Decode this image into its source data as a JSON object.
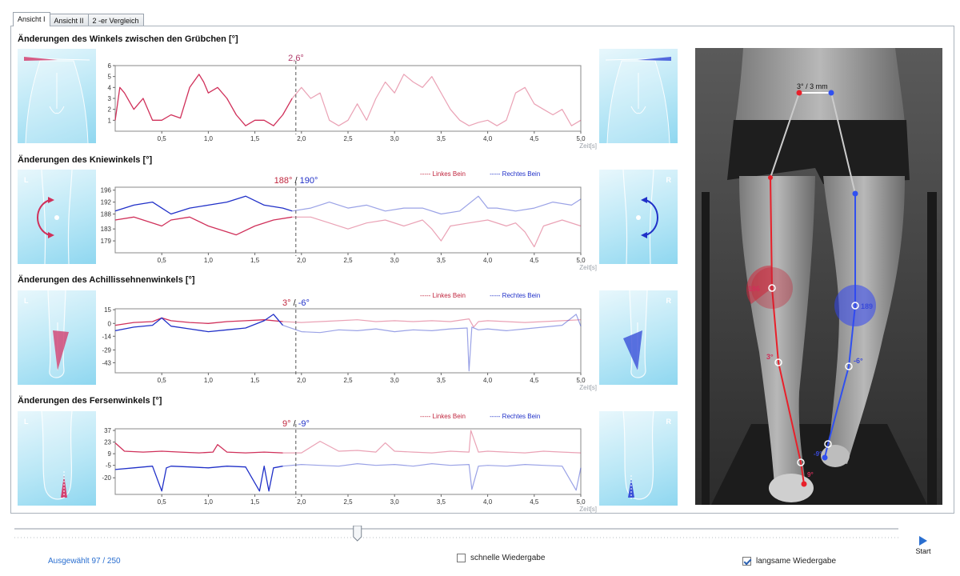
{
  "tabs": [
    {
      "label": "Ansicht I",
      "active": true
    },
    {
      "label": "Ansicht II",
      "active": false
    },
    {
      "label": "2 -er Vergleich",
      "active": false
    }
  ],
  "sections": [
    {
      "title": "Änderungen des Winkels zwischen den Grübchen [°]",
      "readout_left": "2,6°",
      "readout_right": "",
      "legend": null,
      "thumb_left_letter": "",
      "thumb_right_letter": ""
    },
    {
      "title": "Änderungen des Kniewinkels [°]",
      "readout_left": "188°",
      "readout_right": "190°",
      "legend": {
        "left": "----- Linkes Bein",
        "right": "----- Rechtes Bein"
      },
      "thumb_left_letter": "L",
      "thumb_right_letter": "R"
    },
    {
      "title": "Änderungen des Achillissehnenwinkels [°]",
      "readout_left": "3°",
      "readout_right": "-6°",
      "legend": {
        "left": "----- Linkes Bein",
        "right": "----- Rechtes Bein"
      },
      "thumb_left_letter": "L",
      "thumb_right_letter": "R"
    },
    {
      "title": "Änderungen des Fersenwinkels [°]",
      "readout_left": "9°",
      "readout_right": "-9°",
      "legend": {
        "left": "----- Linkes Bein",
        "right": "----- Rechtes Bein"
      },
      "thumb_left_letter": "L",
      "thumb_right_letter": "R"
    }
  ],
  "chart_data": [
    {
      "type": "line",
      "title": "Änderungen des Winkels zwischen den Grübchen [°]",
      "xlabel": "Zeit[s]",
      "xlim": [
        0,
        5.0
      ],
      "ylim": [
        0,
        6
      ],
      "yticks": [
        "6",
        "5",
        "4",
        "3",
        "2",
        "1"
      ],
      "ytick_values": [
        6,
        5,
        4,
        3,
        2,
        1
      ],
      "xticks": [
        "0,5",
        "1,0",
        "1,5",
        "2,0",
        "2,5",
        "3,0",
        "3,5",
        "4,0",
        "4,5",
        "5,0"
      ],
      "xtick_values": [
        0.5,
        1.0,
        1.5,
        2.0,
        2.5,
        3.0,
        3.5,
        4.0,
        4.5,
        5.0
      ],
      "cursor_x": 1.94,
      "series": [
        {
          "color": "#d0305a",
          "x": [
            0,
            0.05,
            0.1,
            0.2,
            0.3,
            0.4,
            0.5,
            0.6,
            0.7,
            0.8,
            0.9,
            0.95,
            1.0,
            1.1,
            1.2,
            1.3,
            1.4,
            1.5,
            1.6,
            1.7,
            1.8,
            1.9,
            2.0,
            2.1,
            2.2,
            2.3,
            2.4,
            2.5,
            2.6,
            2.7,
            2.8,
            2.9,
            3.0,
            3.1,
            3.2,
            3.3,
            3.4,
            3.5,
            3.6,
            3.7,
            3.8,
            3.9,
            4.0,
            4.1,
            4.2,
            4.3,
            4.4,
            4.5,
            4.6,
            4.7,
            4.8,
            4.9,
            5.0
          ],
          "y": [
            1,
            4,
            3.5,
            2,
            3,
            1,
            1,
            1.5,
            1.2,
            4,
            5.2,
            4.5,
            3.5,
            4,
            3,
            1.5,
            0.5,
            1,
            1,
            0.5,
            1.5,
            3,
            4,
            3,
            3.5,
            1,
            0.5,
            1,
            2.5,
            1,
            3,
            4.5,
            3.5,
            5.2,
            4.5,
            4,
            5,
            3.5,
            2,
            1,
            0.5,
            0.8,
            1,
            0.5,
            1,
            3.5,
            4,
            2.5,
            2,
            1.5,
            2,
            0.5,
            1
          ]
        }
      ]
    },
    {
      "type": "line",
      "title": "Änderungen des Kniewinkels [°]",
      "xlabel": "Zeit[s]",
      "xlim": [
        0,
        5.0
      ],
      "ylim": [
        175,
        197
      ],
      "yticks": [
        "196",
        "192",
        "188",
        "183",
        "179"
      ],
      "ytick_values": [
        196,
        192,
        188,
        183,
        179
      ],
      "xticks": [
        "0,5",
        "1,0",
        "1,5",
        "2,0",
        "2,5",
        "3,0",
        "3,5",
        "4,0",
        "4,5",
        "5,0"
      ],
      "xtick_values": [
        0.5,
        1.0,
        1.5,
        2.0,
        2.5,
        3.0,
        3.5,
        4.0,
        4.5,
        5.0
      ],
      "cursor_x": 1.94,
      "series": [
        {
          "name": "Linkes Bein",
          "color": "#d0305a",
          "x": [
            0,
            0.2,
            0.4,
            0.5,
            0.6,
            0.8,
            1.0,
            1.2,
            1.3,
            1.5,
            1.7,
            1.9,
            2.1,
            2.3,
            2.5,
            2.7,
            2.9,
            3.1,
            3.3,
            3.4,
            3.5,
            3.6,
            3.8,
            4.0,
            4.2,
            4.3,
            4.4,
            4.5,
            4.6,
            4.8,
            5.0
          ],
          "y": [
            186,
            187,
            185,
            184,
            186,
            187,
            184,
            182,
            181,
            184,
            186,
            187,
            187,
            185,
            183,
            185,
            186,
            184,
            186,
            183,
            179,
            184,
            185,
            186,
            184,
            185,
            182,
            177,
            184,
            186,
            184
          ]
        },
        {
          "name": "Rechtes Bein",
          "color": "#2030c8",
          "x": [
            0,
            0.2,
            0.4,
            0.5,
            0.6,
            0.8,
            1.0,
            1.2,
            1.4,
            1.6,
            1.8,
            1.9,
            2.1,
            2.3,
            2.5,
            2.7,
            2.9,
            3.1,
            3.3,
            3.5,
            3.7,
            3.9,
            4.0,
            4.1,
            4.3,
            4.5,
            4.7,
            4.9,
            5.0
          ],
          "y": [
            189,
            191,
            192,
            190,
            188,
            190,
            191,
            192,
            194,
            191,
            190,
            189,
            190,
            192,
            190,
            191,
            189,
            190,
            190,
            188,
            189,
            194,
            190,
            190,
            189,
            190,
            192,
            191,
            193
          ]
        }
      ]
    },
    {
      "type": "line",
      "title": "Änderungen des Achillissehnenwinkels [°]",
      "xlabel": "Zeit[s]",
      "xlim": [
        0,
        5.0
      ],
      "ylim": [
        -54,
        16
      ],
      "yticks": [
        "15",
        "0",
        "-14",
        "-29",
        "-43"
      ],
      "ytick_values": [
        15,
        0,
        -14,
        -29,
        -43
      ],
      "xticks": [
        "0,5",
        "1,0",
        "1,5",
        "2,0",
        "2,5",
        "3,0",
        "3,5",
        "4,0",
        "4,5",
        "5,0"
      ],
      "xtick_values": [
        0.5,
        1.0,
        1.5,
        2.0,
        2.5,
        3.0,
        3.5,
        4.0,
        4.5,
        5.0
      ],
      "cursor_x": 1.94,
      "series": [
        {
          "name": "Linkes Bein",
          "color": "#d0305a",
          "x": [
            0,
            0.2,
            0.4,
            0.5,
            0.6,
            0.8,
            1.0,
            1.2,
            1.4,
            1.6,
            1.8,
            2.0,
            2.2,
            2.4,
            2.6,
            2.8,
            3.0,
            3.2,
            3.4,
            3.6,
            3.8,
            3.85,
            3.9,
            4.0,
            4.2,
            4.4,
            4.6,
            4.8,
            5.0
          ],
          "y": [
            -2,
            1,
            2,
            6,
            3,
            1,
            0,
            2,
            3,
            4,
            2,
            1,
            2,
            3,
            4,
            2,
            3,
            2,
            3,
            2,
            5,
            -4,
            2,
            3,
            2,
            1,
            2,
            3,
            4
          ]
        },
        {
          "name": "Rechtes Bein",
          "color": "#2030c8",
          "x": [
            0,
            0.2,
            0.4,
            0.5,
            0.6,
            0.8,
            1.0,
            1.2,
            1.4,
            1.6,
            1.7,
            1.8,
            2.0,
            2.2,
            2.4,
            2.6,
            2.8,
            3.0,
            3.2,
            3.4,
            3.6,
            3.78,
            3.8,
            3.83,
            3.9,
            4.0,
            4.2,
            4.4,
            4.6,
            4.8,
            4.95,
            5.0
          ],
          "y": [
            -8,
            -4,
            -2,
            6,
            -3,
            -6,
            -9,
            -7,
            -5,
            3,
            10,
            -2,
            -9,
            -10,
            -7,
            -8,
            -6,
            -9,
            -7,
            -8,
            -6,
            -5,
            -52,
            -4,
            -7,
            -6,
            -8,
            -6,
            -4,
            -2,
            10,
            -3
          ]
        }
      ]
    },
    {
      "type": "line",
      "title": "Änderungen des Fersenwinkels [°]",
      "xlabel": "Zeit[s]",
      "xlim": [
        0,
        5.0
      ],
      "ylim": [
        -40,
        39
      ],
      "yticks": [
        "37",
        "23",
        "9",
        "-5",
        "-20"
      ],
      "ytick_values": [
        37,
        23,
        9,
        -5,
        -20
      ],
      "xticks": [
        "0,5",
        "1,0",
        "1,5",
        "2,0",
        "2,5",
        "3,0",
        "3,5",
        "4,0",
        "4,5",
        "5,0"
      ],
      "xtick_values": [
        0.5,
        1.0,
        1.5,
        2.0,
        2.5,
        3.0,
        3.5,
        4.0,
        4.5,
        5.0
      ],
      "cursor_x": 1.94,
      "series": [
        {
          "name": "Linkes Bein",
          "color": "#d0305a",
          "x": [
            0,
            0.1,
            0.3,
            0.5,
            0.7,
            0.9,
            1.05,
            1.1,
            1.2,
            1.4,
            1.6,
            1.8,
            2.0,
            2.2,
            2.4,
            2.6,
            2.8,
            2.9,
            3.0,
            3.2,
            3.4,
            3.6,
            3.8,
            3.82,
            3.9,
            4.0,
            4.2,
            4.4,
            4.6,
            4.8,
            5.0
          ],
          "y": [
            22,
            12,
            11,
            12,
            11,
            10,
            11,
            20,
            11,
            10,
            11,
            10,
            10,
            24,
            12,
            13,
            11,
            22,
            12,
            11,
            10,
            12,
            11,
            37,
            11,
            12,
            11,
            10,
            12,
            11,
            10
          ]
        },
        {
          "name": "Rechtes Bein",
          "color": "#2030c8",
          "x": [
            0,
            0.2,
            0.4,
            0.5,
            0.55,
            0.6,
            0.8,
            1.0,
            1.2,
            1.4,
            1.55,
            1.6,
            1.65,
            1.7,
            1.8,
            2.0,
            2.2,
            2.4,
            2.6,
            2.8,
            3.0,
            3.2,
            3.4,
            3.6,
            3.8,
            3.83,
            3.9,
            4.0,
            4.2,
            4.4,
            4.6,
            4.8,
            4.95,
            5.0
          ],
          "y": [
            -10,
            -8,
            -6,
            -36,
            -8,
            -6,
            -7,
            -8,
            -6,
            -7,
            -36,
            -6,
            -36,
            -8,
            -6,
            -4,
            -5,
            -6,
            -3,
            -5,
            -4,
            -6,
            -3,
            -5,
            -4,
            -34,
            -6,
            -5,
            -6,
            -4,
            -5,
            -6,
            -35,
            -8
          ]
        }
      ]
    }
  ],
  "photo": {
    "labels": [
      {
        "text": "3° / 3 mm",
        "color": "#111111"
      },
      {
        "text": "186",
        "color": "#d0305a"
      },
      {
        "text": "189",
        "color": "#3a4ad8"
      },
      {
        "text": "3°",
        "color": "#d0305a"
      },
      {
        "text": "-6°",
        "color": "#3a4ad8"
      },
      {
        "text": "9°",
        "color": "#d0305a"
      },
      {
        "text": "-9°",
        "color": "#3a4ad8"
      }
    ]
  },
  "footer": {
    "selected": "Ausgewählt 97 / 250",
    "fast_label": "schnelle Wiedergabe",
    "fast_checked": false,
    "slow_label": "langsame Wiedergabe",
    "slow_checked": true,
    "start_label": "Start",
    "slider_value_fraction": 0.388
  },
  "colors": {
    "left": "#d0305a",
    "right": "#2030c8",
    "thumb": "#9fdcf2",
    "accent": "#2a6fd0"
  }
}
